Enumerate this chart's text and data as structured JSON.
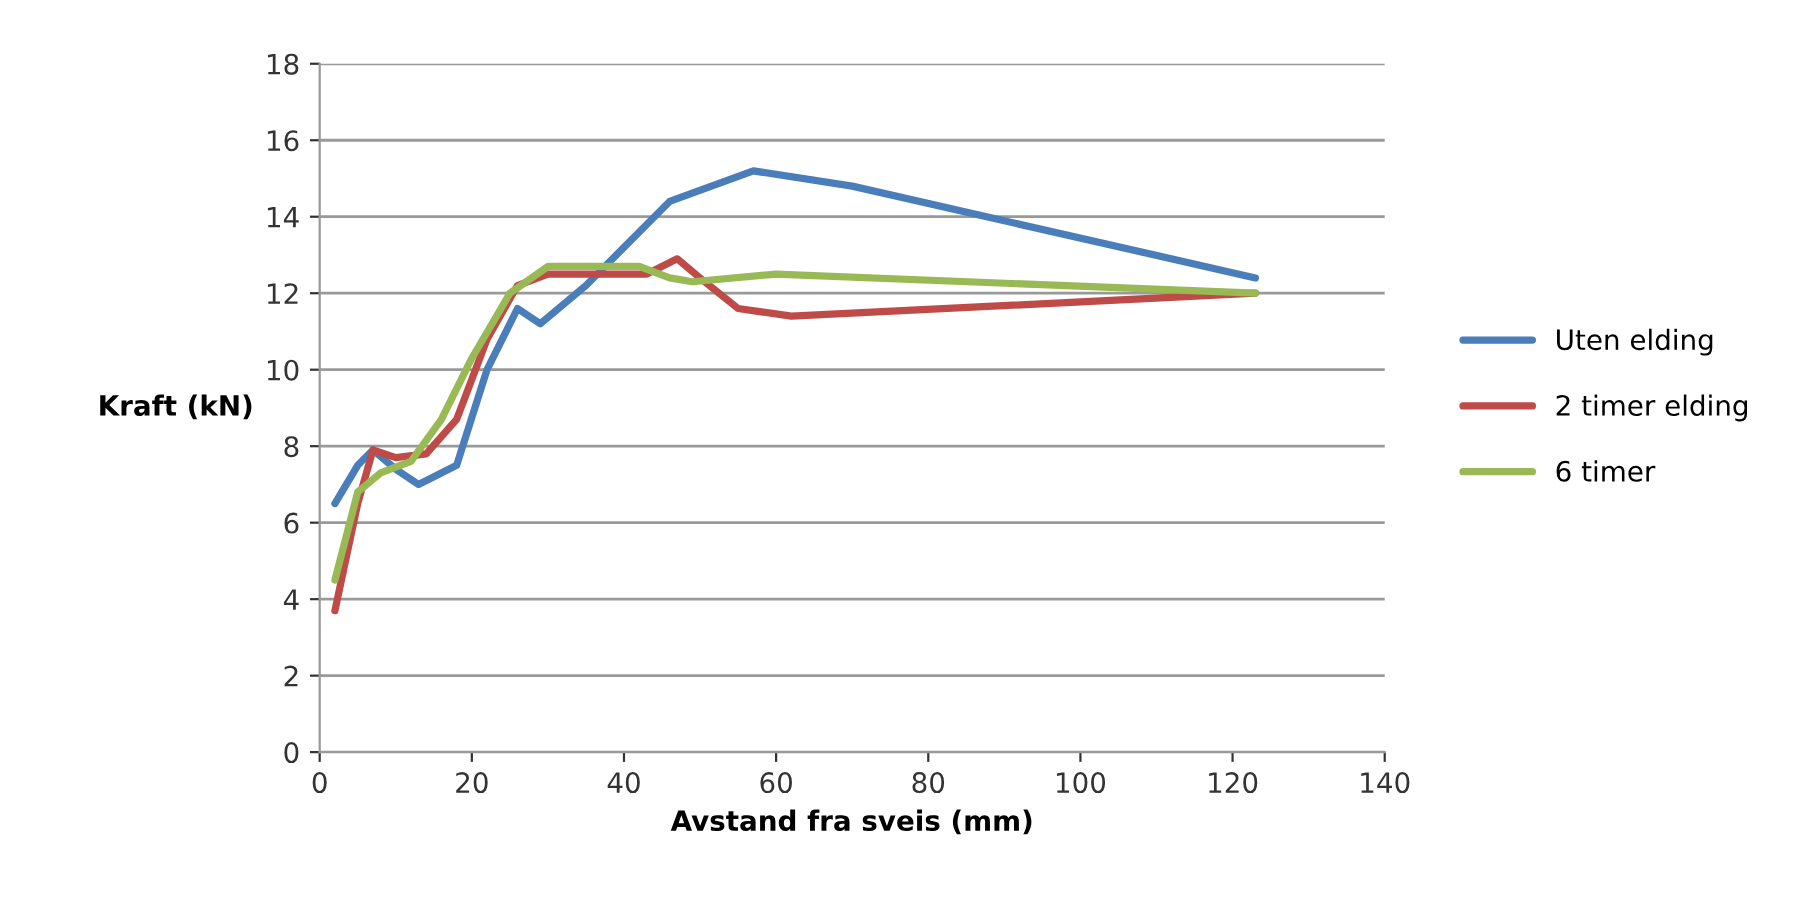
{
  "chart_data": {
    "type": "line",
    "xlabel": "Avstand fra sveis (mm)",
    "ylabel": "Kraft (kN)",
    "xlim": [
      0,
      140
    ],
    "xticks": [
      0,
      20,
      40,
      60,
      80,
      100,
      120,
      140
    ],
    "ylim": [
      0,
      18
    ],
    "yticks": [
      0,
      2,
      4,
      6,
      8,
      10,
      12,
      14,
      16,
      18
    ],
    "grid": "y",
    "legend": "right",
    "marker": "none",
    "line_style": "solid",
    "series": [
      {
        "name": "Uten elding",
        "color": "#4a7ebb",
        "x": [
          2,
          5,
          7,
          10,
          13,
          18,
          22,
          26,
          29,
          35,
          46,
          57,
          70,
          123
        ],
        "values": [
          6.5,
          7.5,
          7.9,
          7.4,
          7.0,
          7.5,
          10.0,
          11.6,
          11.2,
          12.2,
          14.4,
          15.2,
          14.8,
          12.4
        ]
      },
      {
        "name": "2 timer elding",
        "color": "#be4b48",
        "x": [
          2,
          5,
          7,
          10,
          14,
          18,
          22,
          26,
          30,
          43,
          47,
          50,
          55,
          62,
          123
        ],
        "values": [
          3.7,
          6.5,
          7.9,
          7.7,
          7.8,
          8.7,
          10.8,
          12.2,
          12.5,
          12.5,
          12.9,
          12.4,
          11.6,
          11.4,
          12.0
        ]
      },
      {
        "name": "6 timer",
        "color": "#98b954",
        "x": [
          2,
          5,
          8,
          12,
          16,
          20,
          25,
          30,
          42,
          46,
          49,
          60,
          123
        ],
        "values": [
          4.5,
          6.8,
          7.3,
          7.6,
          8.7,
          10.3,
          12.0,
          12.7,
          12.7,
          12.4,
          12.3,
          12.5,
          12.0
        ]
      }
    ]
  }
}
